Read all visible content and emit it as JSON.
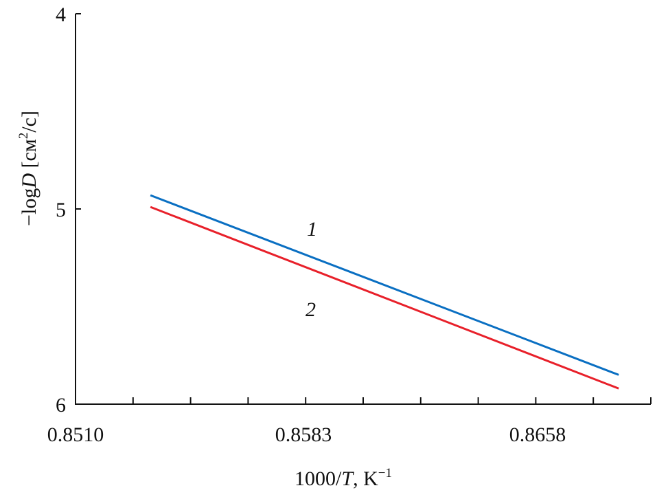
{
  "chart_data": {
    "type": "line",
    "title": "",
    "xlabel": "1000/T, K⁻¹",
    "xlabel_parts": {
      "prefix": "1000/",
      "var": "T",
      "suffix": ", K",
      "sup": "−1"
    },
    "ylabel": "−logD [см²/с]",
    "ylabel_parts": {
      "prefix": "−log",
      "var": "D",
      "unit_pre": " [см",
      "sup": "2",
      "unit_post": "/с]"
    },
    "xlim": [
      0.851,
      0.8678
    ],
    "ylim": [
      4,
      6
    ],
    "y_inverted": true,
    "x_ticks": [
      "0.8510",
      "0.8583",
      "0.8658"
    ],
    "y_ticks": [
      "4",
      "5",
      "6"
    ],
    "grid": false,
    "series": [
      {
        "name": "1",
        "color": "#0a6fc2",
        "x": [
          0.8534,
          0.8684
        ],
        "y": [
          4.93,
          5.85
        ]
      },
      {
        "name": "2",
        "color": "#e8202a",
        "x": [
          0.8534,
          0.8684
        ],
        "y": [
          4.99,
          5.92
        ]
      }
    ]
  }
}
